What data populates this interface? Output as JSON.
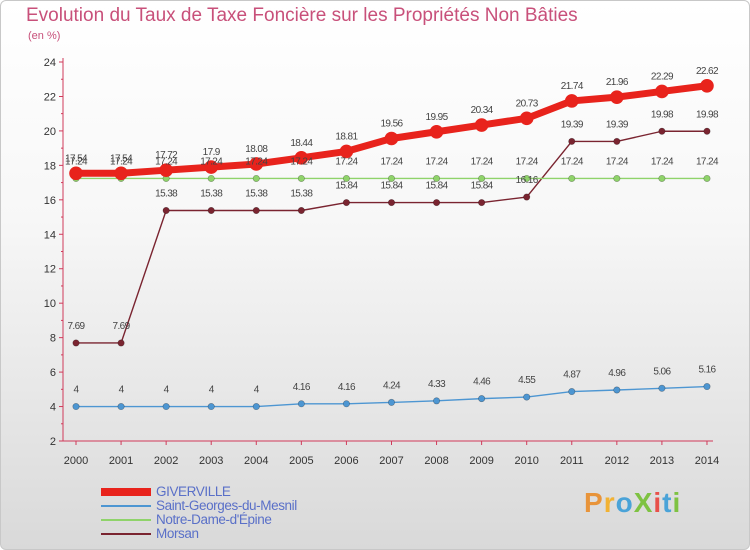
{
  "chart_data": {
    "type": "line",
    "title": "Evolution du Taux de Taxe Foncière sur les Propriétés Non Bâties",
    "ylabel": "(en %)",
    "xlabel": "",
    "x": [
      "2000",
      "2001",
      "2002",
      "2003",
      "2004",
      "2005",
      "2006",
      "2007",
      "2008",
      "2009",
      "2010",
      "2011",
      "2012",
      "2013",
      "2014"
    ],
    "yticks": [
      "2",
      "4",
      "6",
      "8",
      "10",
      "12",
      "14",
      "16",
      "18",
      "20",
      "22",
      "24"
    ],
    "ylim": [
      2,
      24
    ],
    "grid": false,
    "legend_position": "bottom-left",
    "series": [
      {
        "name": "GIVERVILLE",
        "color": "#e8231c",
        "values": [
          17.54,
          17.54,
          17.72,
          17.9,
          18.08,
          18.44,
          18.81,
          19.56,
          19.95,
          20.34,
          20.73,
          21.74,
          21.96,
          22.29,
          22.62
        ],
        "labels": [
          "17.54",
          "17.54",
          "17.72",
          "17.9",
          "18.08",
          "18.44",
          "18.81",
          "19.56",
          "19.95",
          "20.34",
          "20.73",
          "21.74",
          "21.96",
          "22.29",
          "22.62"
        ]
      },
      {
        "name": "Saint-Georges-du-Mesnil",
        "color": "#4d96d2",
        "values": [
          4,
          4,
          4,
          4,
          4,
          4.16,
          4.16,
          4.24,
          4.33,
          4.46,
          4.55,
          4.87,
          4.96,
          5.06,
          5.16
        ],
        "labels": [
          "4",
          "4",
          "4",
          "4",
          "4",
          "4.16",
          "4.16",
          "4.24",
          "4.33",
          "4.46",
          "4.55",
          "4.87",
          "4.96",
          "5.06",
          "5.16"
        ]
      },
      {
        "name": "Notre-Dame-d'Épine",
        "color": "#8fd36a",
        "values": [
          17.24,
          17.24,
          17.24,
          17.24,
          17.24,
          17.24,
          17.24,
          17.24,
          17.24,
          17.24,
          17.24,
          17.24,
          17.24,
          17.24,
          17.24
        ],
        "labels": [
          "17.24",
          "17.24",
          "17.24",
          "17.24",
          "17.24",
          "17.24",
          "17.24",
          "17.24",
          "17.24",
          "17.24",
          "17.24",
          "17.24",
          "17.24",
          "17.24",
          "17.24"
        ]
      },
      {
        "name": "Morsan",
        "color": "#7a2430",
        "values": [
          7.69,
          7.69,
          15.38,
          15.38,
          15.38,
          15.38,
          15.84,
          15.84,
          15.84,
          15.84,
          16.16,
          19.39,
          19.39,
          19.98,
          19.98
        ],
        "labels": [
          "7.69",
          "7.69",
          "15.38",
          "15.38",
          "15.38",
          "15.38",
          "15.84",
          "15.84",
          "15.84",
          "15.84",
          "16.16",
          "19.39",
          "19.39",
          "19.98",
          "19.98"
        ]
      }
    ]
  },
  "brand": {
    "text": "ProXiti",
    "colors": [
      "#e8943a",
      "#f2b233",
      "#4aa3d8",
      "#7ec242",
      "#e8504a",
      "#4aa3d8",
      "#7ec242"
    ]
  }
}
